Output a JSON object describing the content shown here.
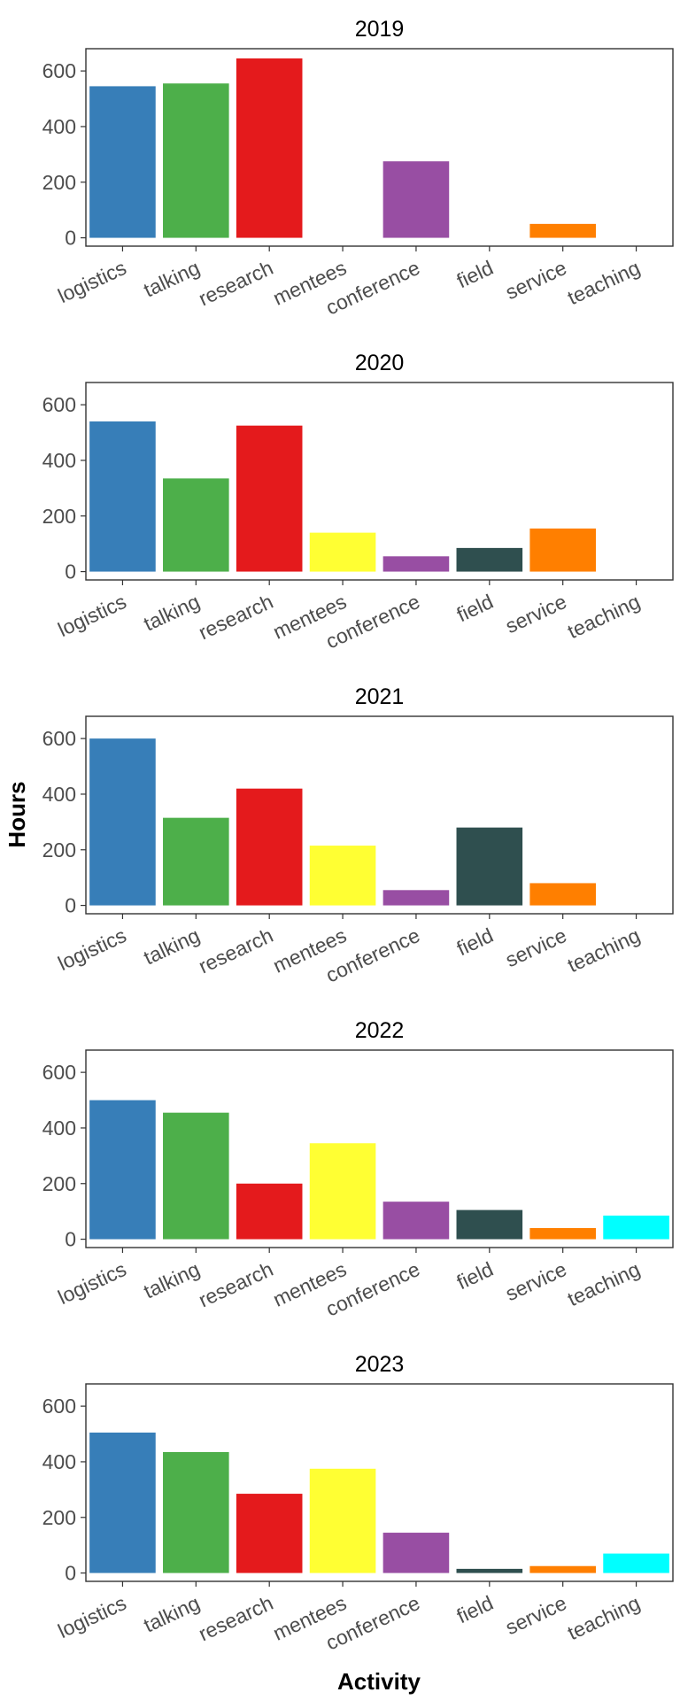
{
  "chart_data": {
    "type": "bar",
    "layout": "faceted",
    "xlabel": "Activity",
    "ylabel": "Hours",
    "ylim": [
      -30,
      680
    ],
    "yticks": [
      0,
      200,
      400,
      600
    ],
    "grid": false,
    "legend": "none",
    "categories": [
      "logistics",
      "talking",
      "research",
      "mentees",
      "conference",
      "field",
      "service",
      "teaching"
    ],
    "colors": {
      "logistics": "#377eb8",
      "talking": "#4daf4a",
      "research": "#e41a1c",
      "mentees": "#ffff33",
      "conference": "#984ea3",
      "field": "#2f4f4f",
      "service": "#ff7f00",
      "teaching": "#00ffff"
    },
    "panels": [
      {
        "title": "2019",
        "values": [
          545,
          555,
          645,
          0,
          275,
          0,
          50,
          0
        ]
      },
      {
        "title": "2020",
        "values": [
          540,
          335,
          525,
          140,
          55,
          85,
          155,
          0
        ]
      },
      {
        "title": "2021",
        "values": [
          600,
          315,
          420,
          215,
          55,
          280,
          80,
          0
        ]
      },
      {
        "title": "2022",
        "values": [
          500,
          455,
          200,
          345,
          135,
          105,
          40,
          85
        ]
      },
      {
        "title": "2023",
        "values": [
          505,
          435,
          285,
          375,
          145,
          15,
          25,
          70
        ]
      }
    ]
  }
}
